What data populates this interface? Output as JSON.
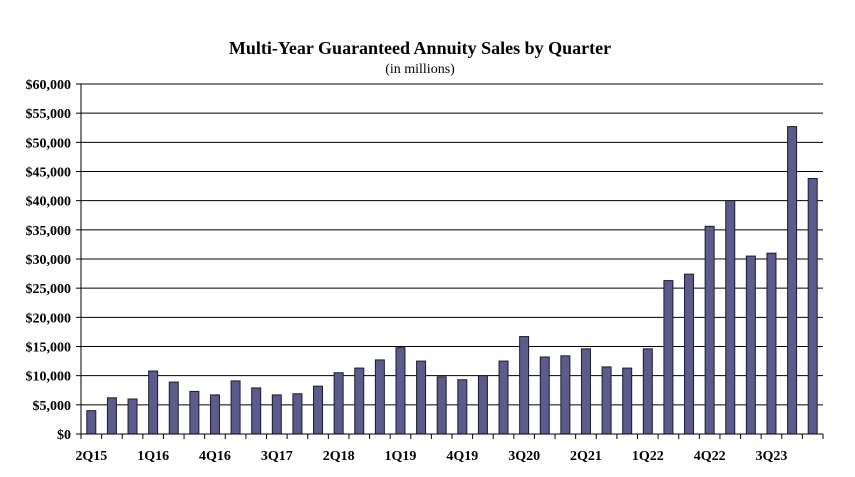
{
  "chart_data": {
    "type": "bar",
    "title": "Multi-Year Guaranteed Annuity Sales by Quarter",
    "subtitle": "(in millions)",
    "categories": [
      "2Q15",
      "3Q15",
      "4Q15",
      "1Q16",
      "2Q16",
      "3Q16",
      "4Q16",
      "1Q17",
      "2Q17",
      "3Q17",
      "4Q17",
      "1Q18",
      "2Q18",
      "3Q18",
      "4Q18",
      "1Q19",
      "2Q19",
      "3Q19",
      "4Q19",
      "1Q20",
      "2Q20",
      "3Q20",
      "4Q20",
      "1Q21",
      "2Q21",
      "3Q21",
      "4Q21",
      "1Q22",
      "2Q22",
      "3Q22",
      "4Q22",
      "1Q23",
      "2Q23",
      "3Q23",
      "4Q23",
      "1Q24"
    ],
    "x_tick_labels": [
      "2Q15",
      "1Q16",
      "4Q16",
      "3Q17",
      "2Q18",
      "1Q19",
      "4Q19",
      "3Q20",
      "2Q21",
      "1Q22",
      "4Q22",
      "3Q23"
    ],
    "values": [
      4000,
      6200,
      6000,
      10800,
      8900,
      7300,
      6700,
      9100,
      7900,
      6700,
      6900,
      8200,
      10500,
      11300,
      12700,
      14800,
      12500,
      9800,
      9300,
      10000,
      12500,
      16700,
      13200,
      13400,
      14600,
      11500,
      11300,
      14600,
      26300,
      27400,
      35600,
      40000,
      30500,
      31000,
      52700,
      43800
    ],
    "ylim": [
      0,
      60000
    ],
    "y_tick_labels": [
      "$0",
      "$5,000",
      "$10,000",
      "$15,000",
      "$20,000",
      "$25,000",
      "$30,000",
      "$35,000",
      "$40,000",
      "$45,000",
      "$50,000",
      "$55,000",
      "$60,000"
    ],
    "grid": true,
    "xlabel": "",
    "ylabel": "",
    "colors": {
      "bar_fill": "#5b5b8c",
      "bar_stroke": "#1a1a33",
      "grid": "#000000"
    }
  }
}
